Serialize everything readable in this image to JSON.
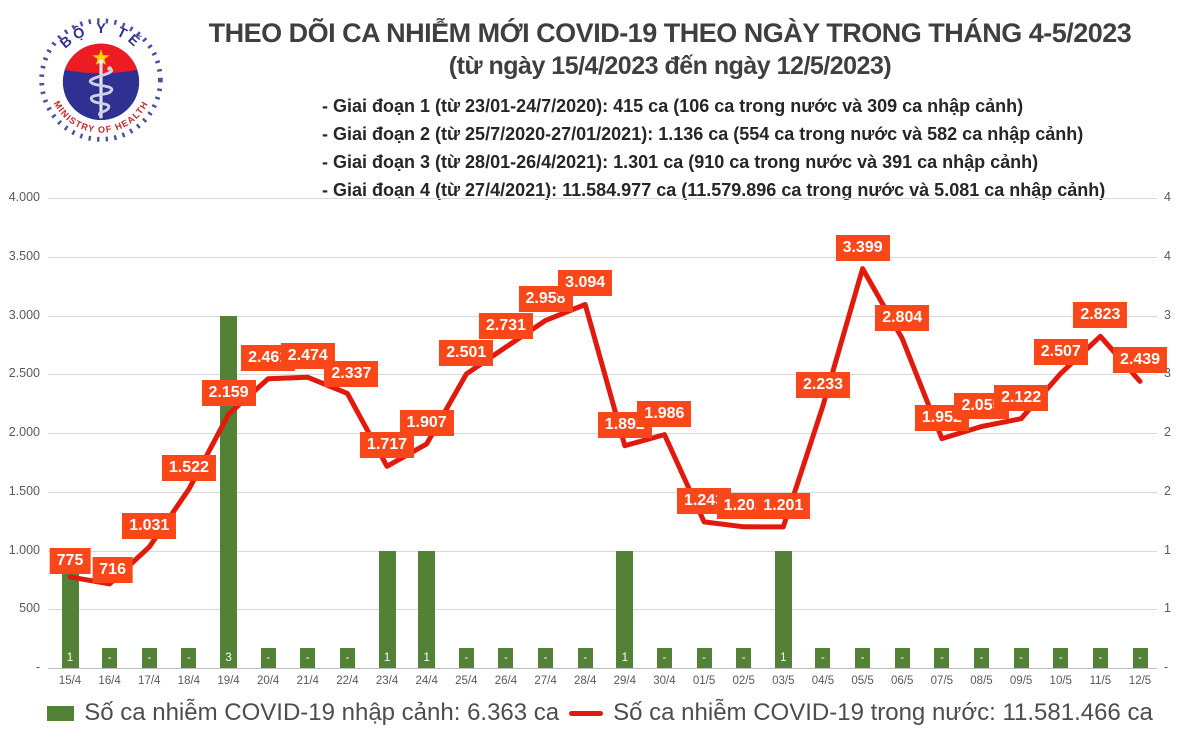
{
  "header": {
    "title": "THEO DÕI CA NHIỄM MỚI COVID-19 THEO NGÀY TRONG THÁNG 4-5/2023",
    "subtitle": "(từ ngày 15/4/2023 đến ngày 12/5/2023)",
    "phases": [
      "- Giai đoạn 1 (từ 23/01-24/7/2020): 415 ca (106 ca trong nước và 309 ca nhập cảnh)",
      "- Giai đoạn 2 (từ 25/7/2020-27/01/2021): 1.136 ca (554 ca trong nước và 582 ca nhập cảnh)",
      "- Giai đoạn 3 (từ 28/01-26/4/2021): 1.301 ca (910 ca trong nước và 391 ca nhập cảnh)",
      "- Giai đoạn 4 (từ 27/4/2021): 11.584.977 ca (11.579.896 ca trong nước và 5.081 ca nhập cảnh)"
    ],
    "logo": {
      "top_text": "BỘ Y TẾ",
      "bottom_text": "MINISTRY OF HEALTH"
    }
  },
  "chart_data": {
    "type": "bar+line combo",
    "categories": [
      "15/4",
      "16/4",
      "17/4",
      "18/4",
      "19/4",
      "20/4",
      "21/4",
      "22/4",
      "23/4",
      "24/4",
      "25/4",
      "26/4",
      "27/4",
      "28/4",
      "29/4",
      "30/4",
      "01/5",
      "02/5",
      "03/5",
      "04/5",
      "05/5",
      "06/5",
      "07/5",
      "08/5",
      "09/5",
      "10/5",
      "11/5",
      "12/5"
    ],
    "series": [
      {
        "name": "Số ca nhiễm COVID-19 nhập cảnh",
        "type": "bar",
        "axis": "right",
        "color": "#538135",
        "values": [
          1,
          0,
          0,
          0,
          3,
          0,
          0,
          0,
          1,
          1,
          0,
          0,
          0,
          0,
          1,
          0,
          0,
          0,
          1,
          0,
          0,
          0,
          0,
          0,
          0,
          0,
          0,
          0
        ],
        "labels": [
          "1",
          "-",
          "-",
          "-",
          "3",
          "-",
          "-",
          "-",
          "1",
          "1",
          "-",
          "-",
          "-",
          "-",
          "1",
          "-",
          "-",
          "-",
          "1",
          "-",
          "-",
          "-",
          "-",
          "-",
          "-",
          "-",
          "-",
          "-"
        ]
      },
      {
        "name": "Số ca nhiễm COVID-19 trong nước",
        "type": "line",
        "axis": "left",
        "color": "#e2190d",
        "values": [
          775,
          716,
          1031,
          1522,
          2159,
          2461,
          2474,
          2337,
          1717,
          1907,
          2501,
          2731,
          2958,
          3094,
          1892,
          1986,
          1243,
          1202,
          1201,
          2233,
          3399,
          2804,
          1952,
          2055,
          2122,
          2507,
          2823,
          2439
        ],
        "labels": [
          "775",
          "716",
          "1.031",
          "1.522",
          "2.159",
          "2.461",
          "2.474",
          "2.337",
          "1.717",
          "1.907",
          "2.501",
          "2.731",
          "2.958",
          "3.094",
          "1.892",
          "1.986",
          "1.243",
          "1.202",
          "1.201",
          "2.233",
          "3.399",
          "2.804",
          "1.952",
          "2.055",
          "2.122",
          "2.507",
          "2.823",
          "2.439"
        ]
      }
    ],
    "left_axis": {
      "ticks": [
        "4.000",
        "3.500",
        "3.000",
        "2.500",
        "2.000",
        "1.500",
        "1.000",
        "500",
        "-"
      ],
      "min": 0,
      "max": 4000
    },
    "right_axis": {
      "ticks": [
        "4",
        "4",
        "3",
        "3",
        "2",
        "2",
        "1",
        "1",
        "-"
      ],
      "min": 0,
      "max": 4
    },
    "grid": "horizontal only",
    "legend_position": "bottom"
  },
  "legend": {
    "imported": "Số ca nhiễm COVID-19 nhập cảnh: 6.363 ca",
    "domestic": "Số ca nhiễm COVID-19 trong nước: 11.581.466 ca"
  },
  "colors": {
    "bar": "#538135",
    "line": "#e2190d",
    "point_label_bg": "#fa4719",
    "grid": "#d9d9d9",
    "axis_text": "#595959"
  }
}
